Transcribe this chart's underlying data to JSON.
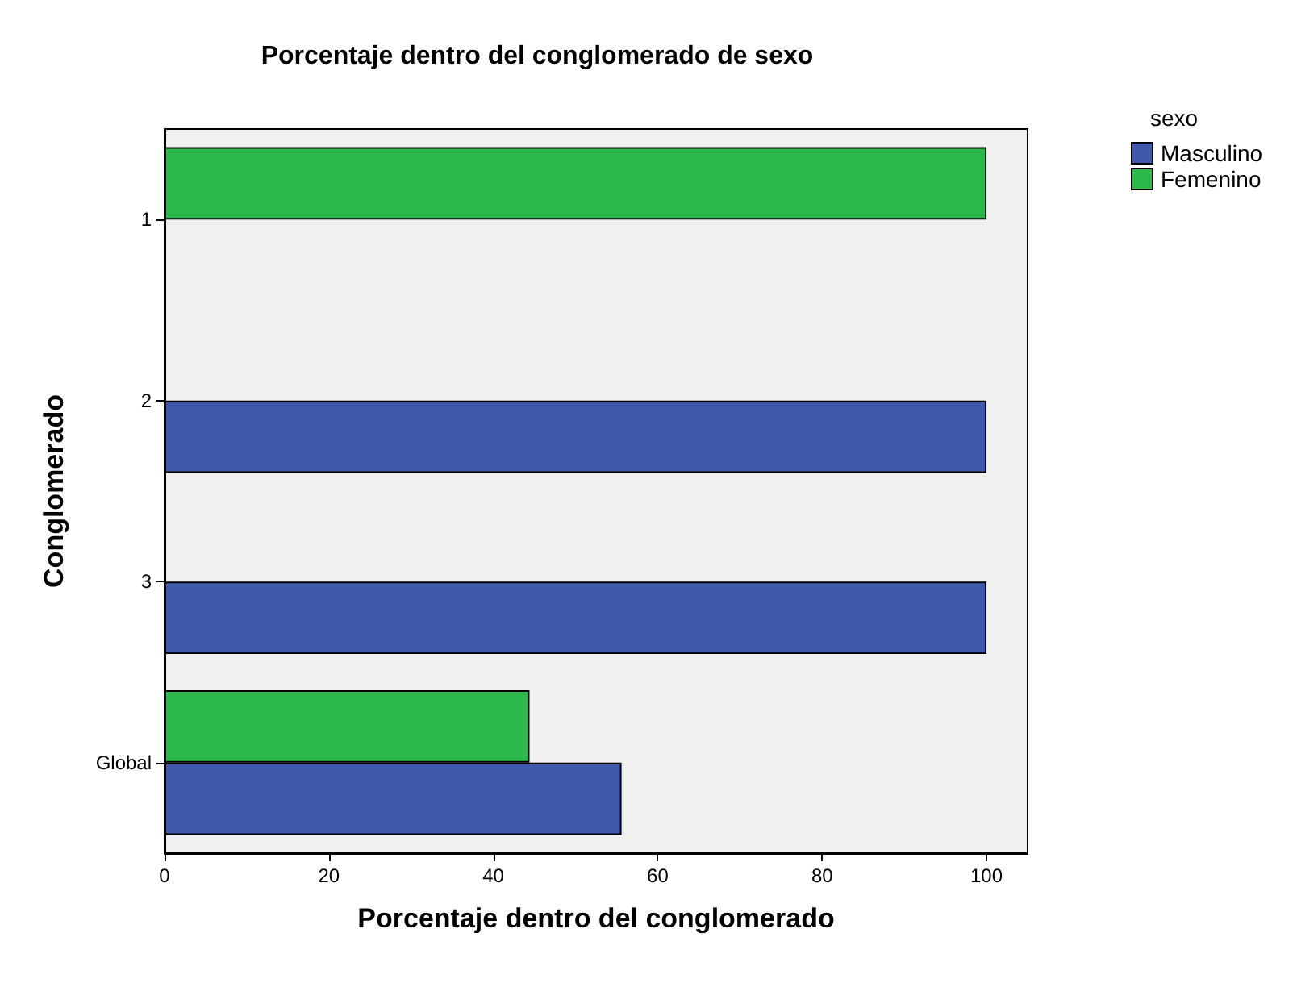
{
  "chart_data": {
    "type": "bar",
    "orientation": "horizontal",
    "title": "Porcentaje dentro del conglomerado de sexo",
    "xlabel": "Porcentaje dentro del conglomerado",
    "ylabel": "Conglomerado",
    "legend_title": "sexo",
    "legend": "top right",
    "grid": false,
    "categories": [
      "1",
      "2",
      "3",
      "Global"
    ],
    "series": [
      {
        "name": "Femenino",
        "color": "#2db84b",
        "values": [
          100,
          null,
          null,
          44.4
        ]
      },
      {
        "name": "Masculino",
        "color": "#3e58ac",
        "values": [
          null,
          100,
          100,
          55.6
        ]
      }
    ],
    "xlim": [
      0,
      105
    ],
    "xticks": [
      0,
      20,
      40,
      60,
      80,
      100
    ]
  }
}
